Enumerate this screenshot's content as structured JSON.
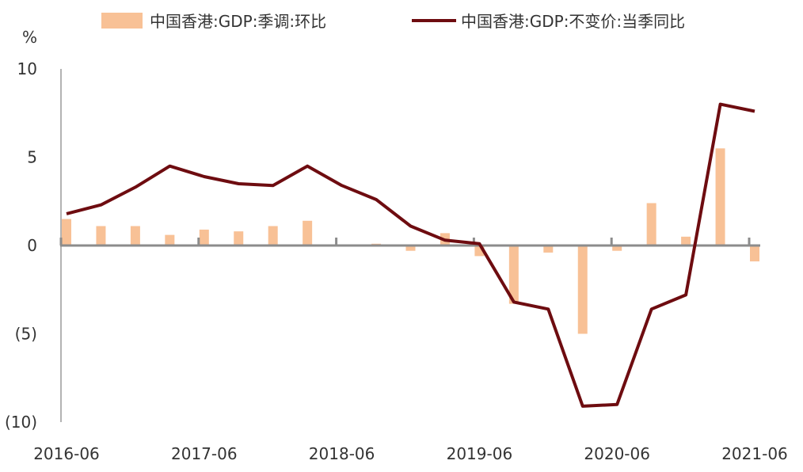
{
  "chart_data": {
    "type": "bar+line",
    "unit_label": "%",
    "ylim": [
      -10,
      10
    ],
    "yticks": [
      10,
      5,
      0,
      -5,
      -10
    ],
    "ytick_labels": [
      "10",
      "5",
      "0",
      "(5)",
      "(10)"
    ],
    "xtick_labels": [
      "2016-06",
      "2017-06",
      "2018-06",
      "2019-06",
      "2020-06",
      "2021-06"
    ],
    "categories": [
      "2016-06",
      "2016-09",
      "2016-12",
      "2017-03",
      "2017-06",
      "2017-09",
      "2017-12",
      "2018-03",
      "2018-06",
      "2018-09",
      "2018-12",
      "2019-03",
      "2019-06",
      "2019-09",
      "2019-12",
      "2020-03",
      "2020-06",
      "2020-09",
      "2020-12",
      "2021-03",
      "2021-06"
    ],
    "series": [
      {
        "name": "中国香港:GDP:季调:环比",
        "kind": "bar",
        "color": "#F8C196",
        "values": [
          1.5,
          1.1,
          1.1,
          0.6,
          0.9,
          0.8,
          1.1,
          1.4,
          0.0,
          0.1,
          -0.3,
          0.7,
          -0.6,
          -3.3,
          -0.4,
          -5.0,
          -0.3,
          2.4,
          0.5,
          5.5,
          -0.9
        ]
      },
      {
        "name": "中国香港:GDP:不变价:当季同比",
        "kind": "line",
        "color": "#6E0C10",
        "values": [
          1.8,
          2.3,
          3.3,
          4.5,
          3.9,
          3.5,
          3.4,
          4.5,
          3.4,
          2.6,
          1.1,
          0.3,
          0.1,
          -3.2,
          -3.6,
          -9.1,
          -9.0,
          -3.6,
          -2.8,
          8.0,
          7.6
        ]
      }
    ]
  }
}
